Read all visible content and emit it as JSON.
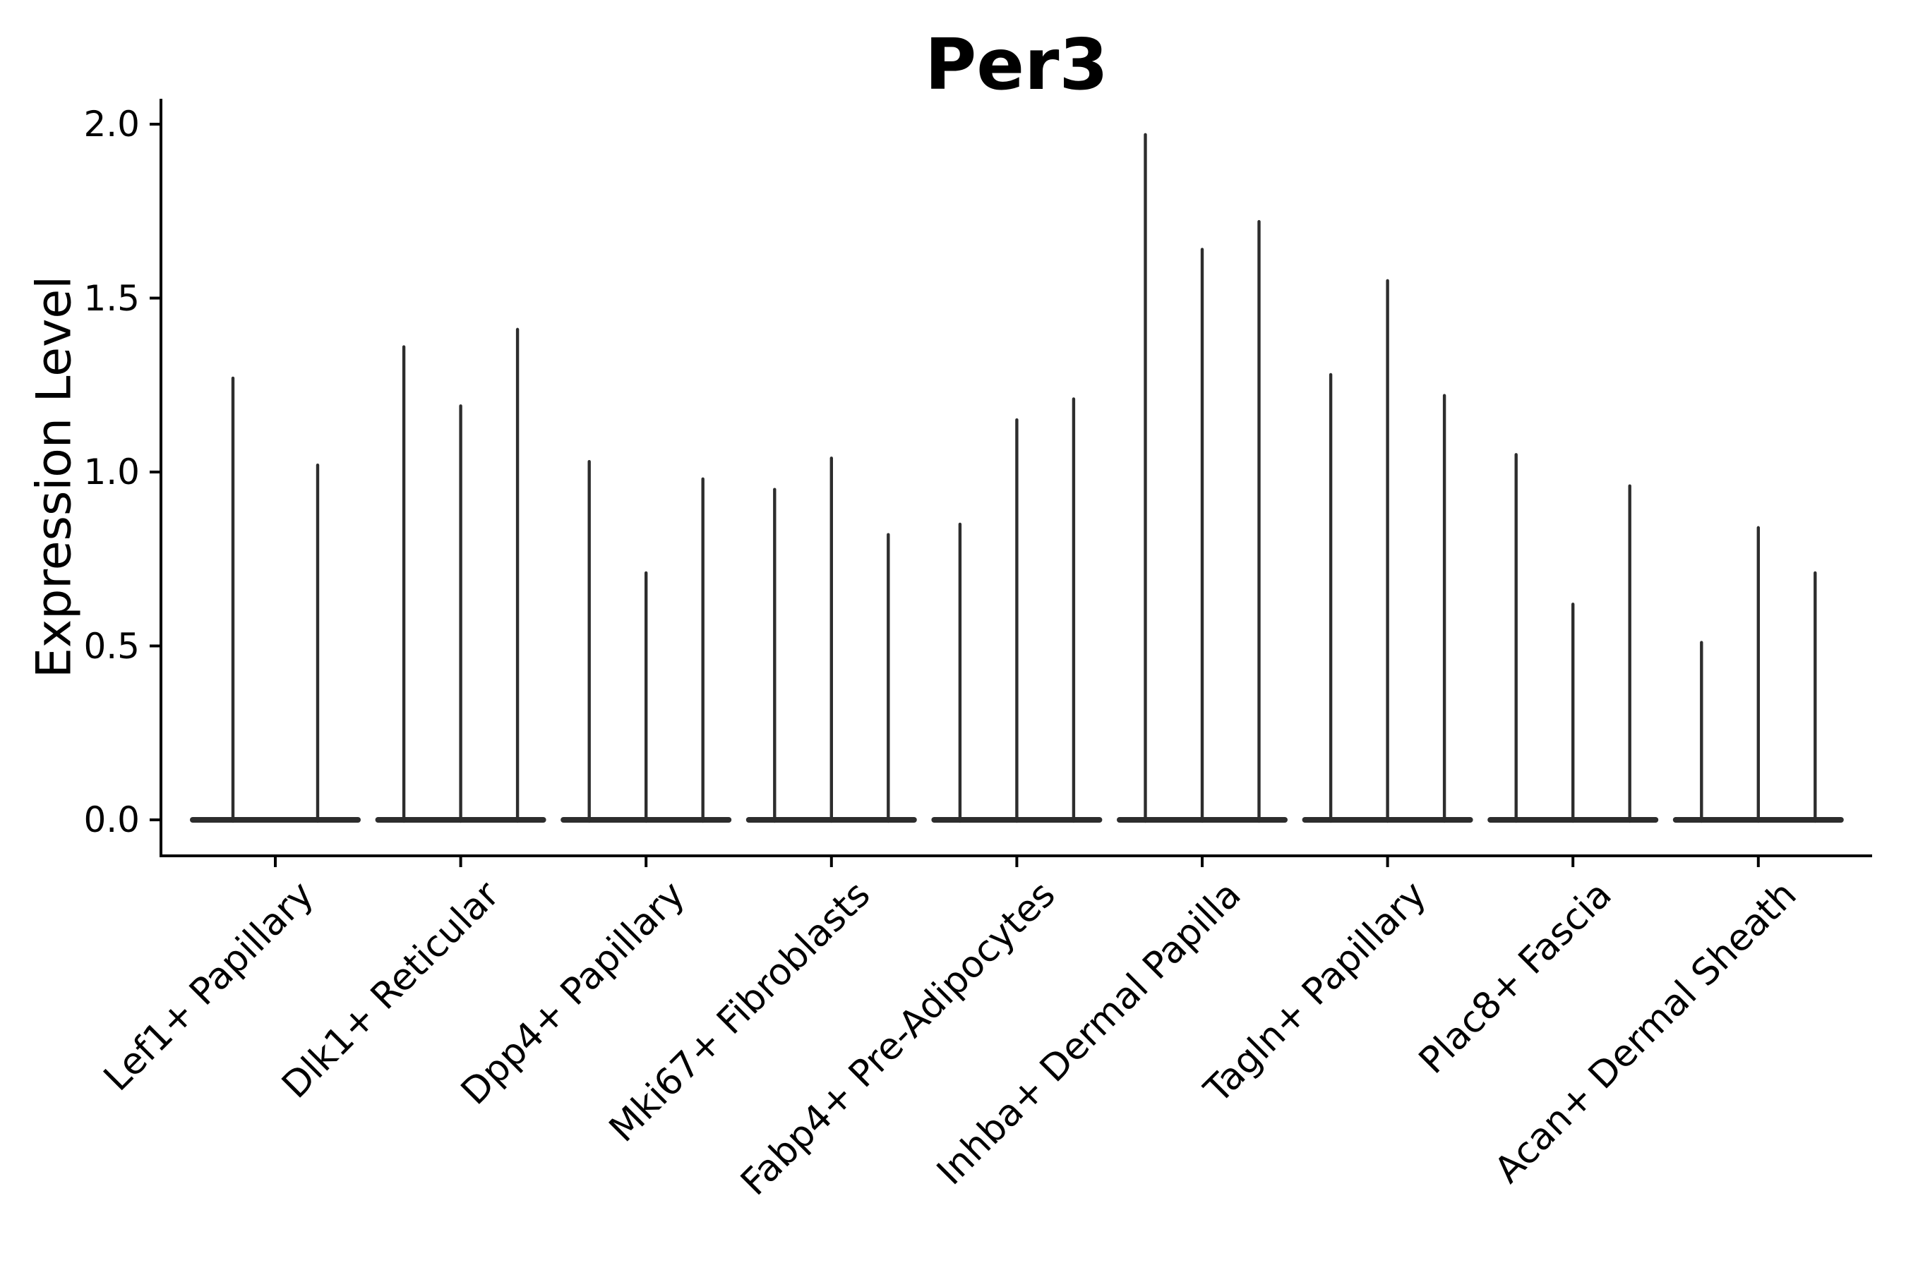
{
  "title": "Per3",
  "y_axis_label": "Expression Level",
  "colors": {
    "background": "#ffffff",
    "axis": "#000000",
    "text": "#000000",
    "violin": "#2d2d2d"
  },
  "chart_data": {
    "type": "violin",
    "title": "Per3",
    "xlabel": "",
    "ylabel": "Expression Level",
    "ylim": [
      0.0,
      2.05
    ],
    "ytick_values": [
      0.0,
      0.5,
      1.0,
      1.5,
      2.0
    ],
    "ytick_labels": [
      "0.0",
      "0.5",
      "1.0",
      "1.5",
      "2.0"
    ],
    "grid": false,
    "legend_position": "none",
    "x_tick_rotation_deg": 45,
    "categories": [
      "Lef1+ Papillary",
      "Dlk1+ Reticular",
      "Dpp4+ Papillary",
      "Mki67+ Fibroblasts",
      "Fabp4+ Pre-Adipocytes",
      "Inhba+ Dermal Papilla",
      "Tagln+ Papillary",
      "Plac8+ Fascia",
      "Acan+ Dermal Sheath"
    ],
    "groups": [
      {
        "label": "Lef1+ Papillary",
        "violin_max_values": [
          1.27,
          1.02
        ]
      },
      {
        "label": "Dlk1+ Reticular",
        "violin_max_values": [
          1.36,
          1.19,
          1.41
        ]
      },
      {
        "label": "Dpp4+ Papillary",
        "violin_max_values": [
          1.03,
          0.71,
          0.98
        ]
      },
      {
        "label": "Mki67+ Fibroblasts",
        "violin_max_values": [
          0.95,
          1.04,
          0.82
        ]
      },
      {
        "label": "Fabp4+ Pre-Adipocytes",
        "violin_max_values": [
          0.85,
          1.15,
          1.21
        ]
      },
      {
        "label": "Inhba+ Dermal Papilla",
        "violin_max_values": [
          1.97,
          1.64,
          1.72
        ]
      },
      {
        "label": "Tagln+ Papillary",
        "violin_max_values": [
          1.28,
          1.55,
          1.22
        ]
      },
      {
        "label": "Plac8+ Fascia",
        "violin_max_values": [
          1.05,
          0.62,
          0.96
        ]
      },
      {
        "label": "Acan+ Dermal Sheath",
        "violin_max_values": [
          0.51,
          0.84,
          0.71
        ]
      }
    ],
    "baseline_value": 0.0,
    "violin_shape_note": "each violin collapses to a thin vertical line with a flat density blob at expression 0"
  }
}
